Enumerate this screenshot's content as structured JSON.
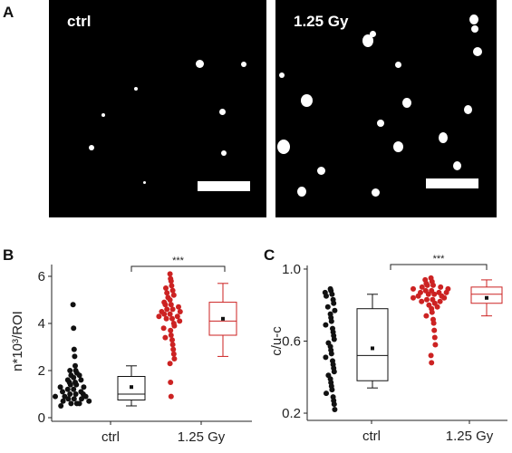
{
  "panels": {
    "a": {
      "letter": "A"
    },
    "b": {
      "letter": "B"
    },
    "c": {
      "letter": "C"
    }
  },
  "micrographs": [
    {
      "label": "ctrl"
    },
    {
      "label": "1.25 Gy"
    }
  ],
  "chart_data": [
    {
      "panel": "B",
      "type": "scatter",
      "ylabel": "n*10³/ROI",
      "categories": [
        "ctrl",
        "1.25 Gy"
      ],
      "ylim": [
        0,
        6.5
      ],
      "yticks": [
        0,
        2,
        4,
        6
      ],
      "significance": "***",
      "series": [
        {
          "category": "ctrl",
          "color": "#111111",
          "points": [
            4.8,
            3.8,
            2.9,
            2.6,
            2.2,
            2.0,
            2.0,
            1.9,
            1.8,
            1.8,
            1.7,
            1.6,
            1.6,
            1.5,
            1.5,
            1.4,
            1.4,
            1.3,
            1.3,
            1.2,
            1.2,
            1.1,
            1.1,
            1.0,
            1.0,
            1.0,
            0.9,
            0.9,
            0.9,
            0.8,
            0.8,
            0.8,
            0.7,
            0.7,
            0.6,
            0.6,
            0.6,
            0.5
          ],
          "box": {
            "min": 0.5,
            "q1": 0.75,
            "median": 1.0,
            "q3": 1.75,
            "max": 2.2,
            "mean": 1.3
          }
        },
        {
          "category": "1.25 Gy",
          "color": "#cc2222",
          "points": [
            6.1,
            5.9,
            5.8,
            5.6,
            5.5,
            5.4,
            5.3,
            5.2,
            5.1,
            5.0,
            4.9,
            4.8,
            4.8,
            4.7,
            4.6,
            4.6,
            4.5,
            4.5,
            4.4,
            4.4,
            4.3,
            4.3,
            4.2,
            4.2,
            4.1,
            4.0,
            3.9,
            3.8,
            3.7,
            3.5,
            3.4,
            3.3,
            3.1,
            2.9,
            2.7,
            2.5,
            2.3,
            1.5,
            0.9
          ],
          "box": {
            "min": 2.6,
            "q1": 3.5,
            "median": 4.1,
            "q3": 4.9,
            "max": 5.7,
            "mean": 4.2
          }
        }
      ]
    },
    {
      "panel": "C",
      "type": "scatter",
      "ylabel": "c/u-c",
      "categories": [
        "ctrl",
        "1.25 Gy"
      ],
      "ylim": [
        0.18,
        1.02
      ],
      "yticks": [
        "0.2",
        "0.6",
        "1.0"
      ],
      "significance": "***",
      "series": [
        {
          "category": "ctrl",
          "color": "#111111",
          "points": [
            0.89,
            0.88,
            0.87,
            0.86,
            0.85,
            0.83,
            0.81,
            0.79,
            0.77,
            0.75,
            0.73,
            0.71,
            0.69,
            0.67,
            0.65,
            0.63,
            0.61,
            0.59,
            0.57,
            0.55,
            0.53,
            0.51,
            0.49,
            0.47,
            0.45,
            0.43,
            0.41,
            0.39,
            0.37,
            0.35,
            0.33,
            0.31,
            0.29,
            0.27,
            0.25,
            0.22
          ],
          "box": {
            "min": 0.34,
            "q1": 0.38,
            "median": 0.52,
            "q3": 0.78,
            "max": 0.86,
            "mean": 0.56
          }
        },
        {
          "category": "1.25 Gy",
          "color": "#cc2222",
          "points": [
            0.95,
            0.94,
            0.93,
            0.92,
            0.91,
            0.91,
            0.9,
            0.9,
            0.89,
            0.89,
            0.88,
            0.88,
            0.87,
            0.87,
            0.87,
            0.86,
            0.86,
            0.85,
            0.85,
            0.84,
            0.84,
            0.83,
            0.83,
            0.82,
            0.82,
            0.81,
            0.8,
            0.79,
            0.78,
            0.76,
            0.74,
            0.72,
            0.7,
            0.66,
            0.62,
            0.58,
            0.52,
            0.48
          ],
          "box": {
            "min": 0.74,
            "q1": 0.81,
            "median": 0.86,
            "q3": 0.9,
            "max": 0.94,
            "mean": 0.84
          }
        }
      ]
    }
  ]
}
